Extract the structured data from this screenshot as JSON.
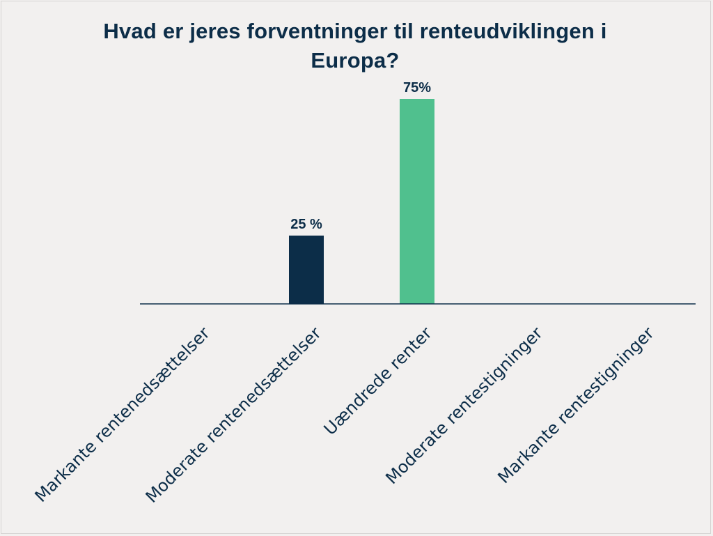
{
  "chart_data": {
    "type": "bar",
    "title": "Hvad er jeres forventninger til renteudviklingen i Europa?",
    "categories": [
      "Markante rentenedsættelser",
      "Moderate rentenedsættelser",
      "Uændrede renter",
      "Moderate rentestigninger",
      "Markante rentestigninger"
    ],
    "values": [
      0,
      25,
      75,
      0,
      0
    ],
    "data_labels": [
      "",
      "25 %",
      "75%",
      "",
      ""
    ],
    "colors": [
      "#0c2d48",
      "#0c2d48",
      "#50c08e",
      "#0c2d48",
      "#0c2d48"
    ],
    "ylim": [
      0,
      75
    ],
    "xlabel": "",
    "ylabel": "",
    "grid": false,
    "legend": "none"
  },
  "colors": {
    "text": "#0c2d48",
    "axis": "#0c2d48",
    "background": "#f2f0ef"
  }
}
